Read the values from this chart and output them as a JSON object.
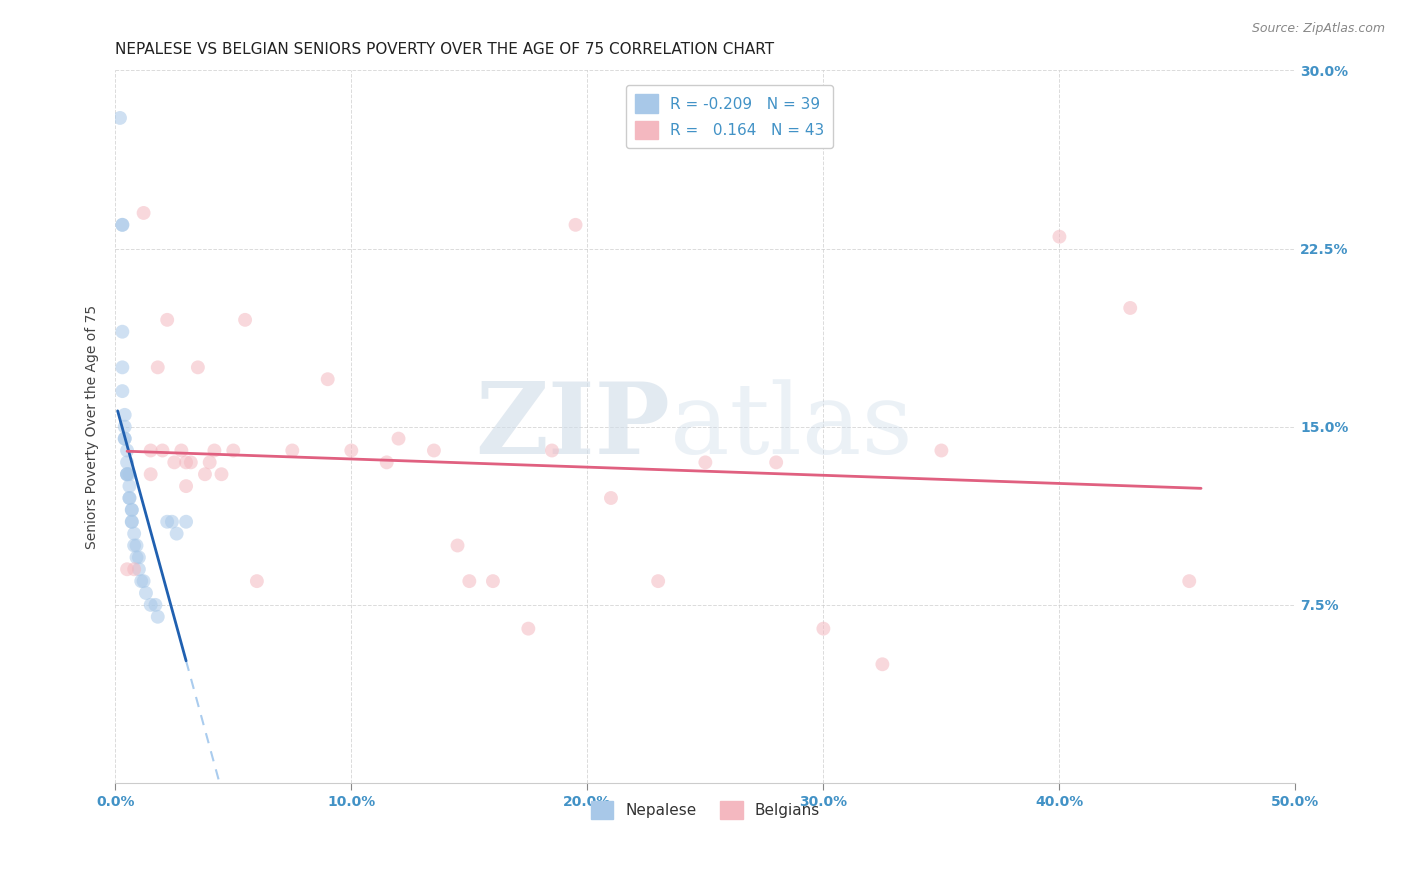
{
  "title": "NEPALESE VS BELGIAN SENIORS POVERTY OVER THE AGE OF 75 CORRELATION CHART",
  "source": "Source: ZipAtlas.com",
  "ylabel": "Seniors Poverty Over the Age of 75",
  "xlim": [
    0,
    0.5
  ],
  "ylim": [
    0,
    0.3
  ],
  "xticks": [
    0.0,
    0.1,
    0.2,
    0.3,
    0.4,
    0.5
  ],
  "yticks": [
    0.0,
    0.075,
    0.15,
    0.225,
    0.3
  ],
  "xticklabels": [
    "0.0%",
    "10.0%",
    "20.0%",
    "30.0%",
    "40.0%",
    "50.0%"
  ],
  "yticklabels": [
    "",
    "7.5%",
    "15.0%",
    "22.5%",
    "30.0%"
  ],
  "nepalese_color": "#a8c8e8",
  "belgian_color": "#f4b8c0",
  "R_nepalese": -0.209,
  "N_nepalese": 39,
  "R_belgian": 0.164,
  "N_belgian": 43,
  "nepalese_x": [
    0.002,
    0.003,
    0.003,
    0.003,
    0.003,
    0.003,
    0.004,
    0.004,
    0.004,
    0.004,
    0.005,
    0.005,
    0.005,
    0.005,
    0.005,
    0.006,
    0.006,
    0.006,
    0.006,
    0.007,
    0.007,
    0.007,
    0.007,
    0.008,
    0.008,
    0.009,
    0.009,
    0.01,
    0.01,
    0.011,
    0.012,
    0.013,
    0.015,
    0.017,
    0.018,
    0.022,
    0.024,
    0.026,
    0.03
  ],
  "nepalese_y": [
    0.28,
    0.235,
    0.235,
    0.19,
    0.175,
    0.165,
    0.155,
    0.15,
    0.145,
    0.145,
    0.14,
    0.135,
    0.13,
    0.13,
    0.13,
    0.13,
    0.125,
    0.12,
    0.12,
    0.115,
    0.115,
    0.11,
    0.11,
    0.105,
    0.1,
    0.1,
    0.095,
    0.095,
    0.09,
    0.085,
    0.085,
    0.08,
    0.075,
    0.075,
    0.07,
    0.11,
    0.11,
    0.105,
    0.11
  ],
  "belgian_x": [
    0.005,
    0.008,
    0.012,
    0.015,
    0.015,
    0.018,
    0.02,
    0.022,
    0.025,
    0.028,
    0.03,
    0.03,
    0.032,
    0.035,
    0.038,
    0.04,
    0.042,
    0.045,
    0.05,
    0.055,
    0.06,
    0.075,
    0.09,
    0.1,
    0.115,
    0.12,
    0.135,
    0.145,
    0.15,
    0.16,
    0.175,
    0.185,
    0.195,
    0.21,
    0.23,
    0.25,
    0.28,
    0.3,
    0.325,
    0.35,
    0.4,
    0.43,
    0.455
  ],
  "belgian_y": [
    0.09,
    0.09,
    0.24,
    0.14,
    0.13,
    0.175,
    0.14,
    0.195,
    0.135,
    0.14,
    0.135,
    0.125,
    0.135,
    0.175,
    0.13,
    0.135,
    0.14,
    0.13,
    0.14,
    0.195,
    0.085,
    0.14,
    0.17,
    0.14,
    0.135,
    0.145,
    0.14,
    0.1,
    0.085,
    0.085,
    0.065,
    0.14,
    0.235,
    0.12,
    0.085,
    0.135,
    0.135,
    0.065,
    0.05,
    0.14,
    0.23,
    0.2,
    0.085
  ],
  "watermark_zip": "ZIP",
  "watermark_atlas": "atlas",
  "background_color": "#ffffff",
  "grid_color": "#cccccc",
  "title_fontsize": 11,
  "axis_label_fontsize": 10,
  "tick_fontsize": 10,
  "legend_fontsize": 11,
  "dot_size": 100,
  "dot_alpha": 0.55,
  "line_blue": "#2060b0",
  "line_pink": "#e06080",
  "line_dash": "#aaccee",
  "nep_line_x_start": 0.001,
  "nep_line_x_solid_end": 0.03,
  "nep_line_x_dash_end": 0.48,
  "bel_line_x_start": 0.005,
  "bel_line_x_end": 0.46
}
